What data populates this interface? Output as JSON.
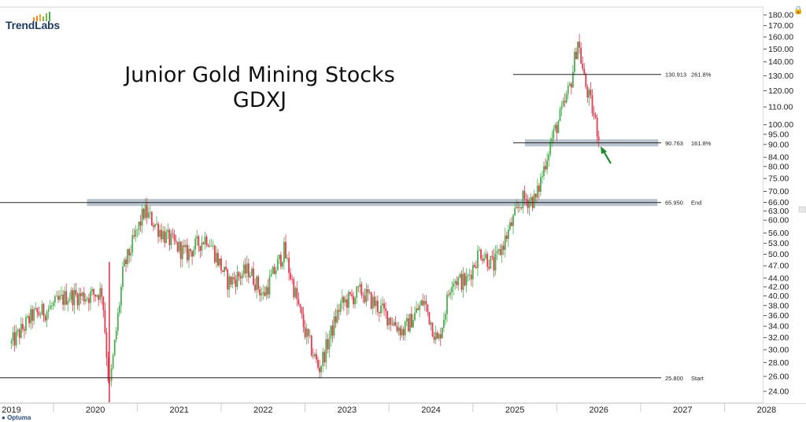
{
  "header": {
    "logo_text": "TrendLabs",
    "title_line1": "Junior Gold Mining Stocks",
    "title_line2": "GDXJ"
  },
  "footer": {
    "brand": "Optuma"
  },
  "chart_data": {
    "type": "candlestick",
    "y_scale": "log",
    "ylim": [
      22.5,
      184
    ],
    "y_ticks": [
      24,
      26,
      28,
      30,
      32,
      34,
      36,
      38,
      40,
      42,
      44,
      47,
      50,
      53,
      56,
      60,
      63,
      66,
      70,
      75,
      80,
      84,
      90,
      95,
      100,
      110,
      120,
      130,
      140,
      150,
      160,
      170,
      180
    ],
    "y_tick_labels": [
      "24.00",
      "26.00",
      "28.00",
      "30.00",
      "32.00",
      "34.00",
      "36.00",
      "38.00",
      "40.00",
      "42.00",
      "44.00",
      "47.00",
      "50.00",
      "53.00",
      "56.00",
      "60.00",
      "63.00",
      "66.00",
      "70.00",
      "75.00",
      "80.00",
      "84.00",
      "90.00",
      "95.00",
      "100.00",
      "110.00",
      "120.00",
      "130.00",
      "140.00",
      "150.00",
      "160.00",
      "170.00",
      "180.00"
    ],
    "x_ticks": [
      "2019",
      "2020",
      "2021",
      "2022",
      "2023",
      "2024",
      "2025",
      "2026",
      "2027",
      "2028"
    ],
    "price_path": [
      {
        "date": "2019-01",
        "value": 31.0
      },
      {
        "date": "2019-04",
        "value": 36.0
      },
      {
        "date": "2019-06",
        "value": 37.0
      },
      {
        "date": "2019-09",
        "value": 40.0
      },
      {
        "date": "2019-12",
        "value": 40.0
      },
      {
        "date": "2020-02",
        "value": 41.0
      },
      {
        "date": "2020-03",
        "value": 24.0
      },
      {
        "date": "2020-05",
        "value": 46.0
      },
      {
        "date": "2020-08",
        "value": 63.0
      },
      {
        "date": "2020-11",
        "value": 55.0
      },
      {
        "date": "2021-02",
        "value": 50.0
      },
      {
        "date": "2021-05",
        "value": 55.0
      },
      {
        "date": "2021-08",
        "value": 43.0
      },
      {
        "date": "2021-11",
        "value": 46.0
      },
      {
        "date": "2022-01",
        "value": 40.0
      },
      {
        "date": "2022-04",
        "value": 51.0
      },
      {
        "date": "2022-07",
        "value": 33.0
      },
      {
        "date": "2022-09",
        "value": 27.0
      },
      {
        "date": "2022-12",
        "value": 38.0
      },
      {
        "date": "2023-03",
        "value": 41.0
      },
      {
        "date": "2023-06",
        "value": 37.0
      },
      {
        "date": "2023-09",
        "value": 33.0
      },
      {
        "date": "2023-12",
        "value": 39.0
      },
      {
        "date": "2024-02",
        "value": 31.0
      },
      {
        "date": "2024-04",
        "value": 44.0
      },
      {
        "date": "2024-06",
        "value": 43.0
      },
      {
        "date": "2024-08",
        "value": 51.0
      },
      {
        "date": "2024-10",
        "value": 47.0
      },
      {
        "date": "2024-12",
        "value": 56.0
      },
      {
        "date": "2025-02",
        "value": 67.0
      },
      {
        "date": "2025-04",
        "value": 67.0
      },
      {
        "date": "2025-06",
        "value": 90.0
      },
      {
        "date": "2025-08",
        "value": 110.0
      },
      {
        "date": "2025-09",
        "value": 125.0
      },
      {
        "date": "2025-10",
        "value": 158.0
      },
      {
        "date": "2025-11",
        "value": 125.0
      },
      {
        "date": "2025-12",
        "value": 110.0
      },
      {
        "date": "2026-01",
        "value": 94.0
      }
    ],
    "levels": [
      {
        "value": 130.913,
        "value_label": "130.913",
        "label": "261.8%",
        "zone": false
      },
      {
        "value": 90.763,
        "value_label": "90.763",
        "label": "161.8%",
        "zone": true
      },
      {
        "value": 65.95,
        "value_label": "65.950",
        "label": "End",
        "zone": true
      },
      {
        "value": 25.8,
        "value_label": "25.800",
        "label": "Start",
        "zone": false
      }
    ],
    "colors": {
      "up": "#4caf50",
      "down": "#e53950",
      "zone": "#aebac7",
      "line": "#222222",
      "arrow": "#1a8a2a",
      "grid": "#e6e6e6"
    }
  }
}
